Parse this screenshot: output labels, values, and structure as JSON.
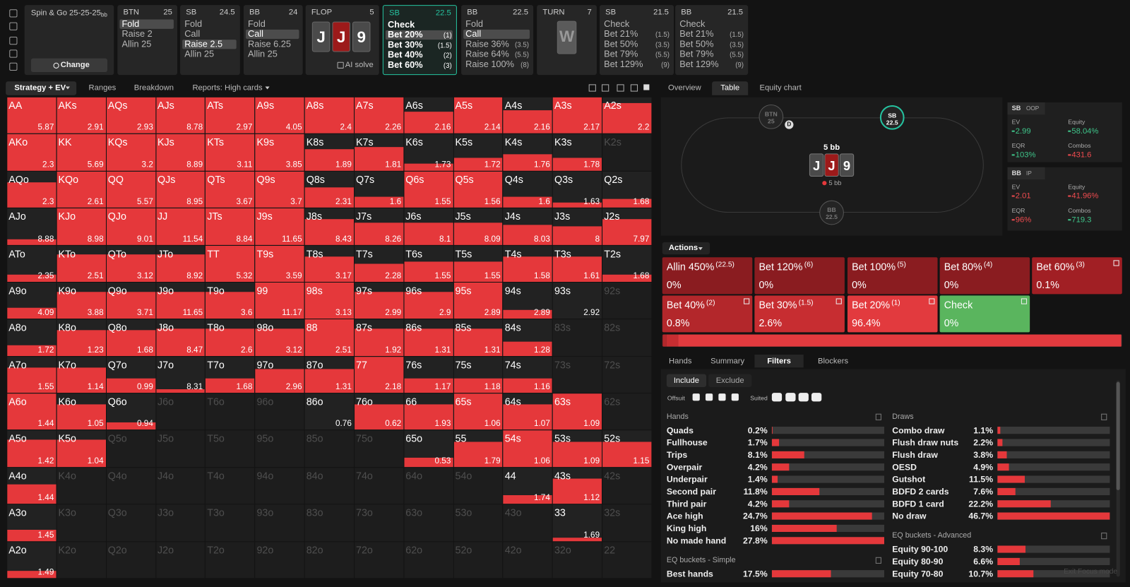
{
  "top_bar": {
    "game": {
      "title": "Spin & Go",
      "stacks": "25-25-25",
      "unit": "bb",
      "button": "Change"
    },
    "nodes": [
      {
        "position": "BTN",
        "stack": 25,
        "actions": [
          {
            "label": "Fold"
          },
          {
            "label": "Raise 2"
          },
          {
            "label": "Allin 25"
          }
        ],
        "selected": 0
      },
      {
        "position": "SB",
        "stack": 24.5,
        "actions": [
          {
            "label": "Fold"
          },
          {
            "label": "Call"
          },
          {
            "label": "Raise 2.5"
          },
          {
            "label": "Allin 25"
          }
        ],
        "selected": 2
      },
      {
        "position": "BB",
        "stack": 24,
        "actions": [
          {
            "label": "Fold"
          },
          {
            "label": "Call"
          },
          {
            "label": "Raise 6.25"
          },
          {
            "label": "Allin 25"
          }
        ],
        "selected": 1
      },
      {
        "position": "FLOP",
        "stack": 5,
        "cards": [
          "J",
          "J",
          "9"
        ],
        "card_colors": [
          "#4a4a4a",
          "#9c1a1a",
          "#4a4a4a"
        ],
        "button": "AI solve"
      },
      {
        "position": "SB",
        "stack": 22.5,
        "active": true,
        "actions": [
          {
            "label": "Check"
          },
          {
            "label": "Bet 20%",
            "size": "(1)"
          },
          {
            "label": "Bet 30%",
            "size": "(1.5)"
          },
          {
            "label": "Bet 40%",
            "size": "(2)"
          },
          {
            "label": "Bet 60%",
            "size": "(3)"
          }
        ],
        "selected": 1
      },
      {
        "position": "BB",
        "stack": 22.5,
        "actions": [
          {
            "label": "Fold"
          },
          {
            "label": "Call"
          },
          {
            "label": "Raise 36%",
            "size": "(3.5)"
          },
          {
            "label": "Raise 64%",
            "size": "(5.5)"
          },
          {
            "label": "Raise 100%",
            "size": "(8)"
          }
        ],
        "selected": 1
      },
      {
        "position": "TURN",
        "stack": 7,
        "cards": [
          "W"
        ],
        "card_colors": [
          "#5a5a5a"
        ]
      },
      {
        "position": "SB",
        "stack": 21.5,
        "actions": [
          {
            "label": "Check"
          },
          {
            "label": "Bet 21%",
            "size": "(1.5)"
          },
          {
            "label": "Bet 50%",
            "size": "(3.5)"
          },
          {
            "label": "Bet 79%",
            "size": "(5.5)"
          },
          {
            "label": "Bet 129%",
            "size": "(9)"
          }
        ]
      },
      {
        "position": "BB",
        "stack": 21.5,
        "actions": [
          {
            "label": "Check"
          },
          {
            "label": "Bet 21%",
            "size": "(1.5)"
          },
          {
            "label": "Bet 50%",
            "size": "(3.5)"
          },
          {
            "label": "Bet 79%",
            "size": "(5.5)"
          },
          {
            "label": "Bet 129%",
            "size": "(9)"
          }
        ]
      }
    ]
  },
  "strategy_tabs": [
    "Strategy + EV",
    "Ranges",
    "Breakdown",
    "Reports: High cards"
  ],
  "view_tabs": [
    "Overview",
    "Table",
    "Equity chart"
  ],
  "active_view": 1,
  "matrix": {
    "rows": [
      [
        [
          "AA",
          5.87,
          100
        ],
        [
          "AKs",
          2.91,
          100
        ],
        [
          "AQs",
          2.93,
          100
        ],
        [
          "AJs",
          8.78,
          100
        ],
        [
          "ATs",
          2.97,
          100
        ],
        [
          "A9s",
          4.05,
          100
        ],
        [
          "A8s",
          2.4,
          100
        ],
        [
          "A7s",
          2.26,
          100
        ],
        [
          "A6s",
          2.16,
          60
        ],
        [
          "A5s",
          2.14,
          100
        ],
        [
          "A4s",
          2.16,
          65
        ],
        [
          "A3s",
          2.17,
          100
        ],
        [
          "A2s",
          2.2,
          85
        ]
      ],
      [
        [
          "AKo",
          2.3,
          100
        ],
        [
          "KK",
          5.69,
          100
        ],
        [
          "KQs",
          3.2,
          100
        ],
        [
          "KJs",
          8.89,
          100
        ],
        [
          "KTs",
          3.11,
          100
        ],
        [
          "K9s",
          3.85,
          100
        ],
        [
          "K8s",
          1.89,
          60
        ],
        [
          "K7s",
          1.81,
          65
        ],
        [
          "K6s",
          1.73,
          20
        ],
        [
          "K5s",
          1.72,
          35
        ],
        [
          "K4s",
          1.76,
          45
        ],
        [
          "K3s",
          1.78,
          35
        ],
        [
          "K2s"
        ]
      ],
      [
        [
          "AQo",
          2.3,
          70
        ],
        [
          "KQo",
          2.61,
          100
        ],
        [
          "QQ",
          5.57,
          100
        ],
        [
          "QJs",
          8.95,
          100
        ],
        [
          "QTs",
          3.67,
          100
        ],
        [
          "Q9s",
          3.7,
          100
        ],
        [
          "Q8s",
          2.31,
          55
        ],
        [
          "Q7s",
          1.6,
          30
        ],
        [
          "Q6s",
          1.55,
          100
        ],
        [
          "Q5s",
          1.56,
          100
        ],
        [
          "Q4s",
          1.6,
          30
        ],
        [
          "Q3s",
          1.63,
          15
        ],
        [
          "Q2s",
          1.68,
          25
        ]
      ],
      [
        [
          "AJo",
          8.88,
          15
        ],
        [
          "KJo",
          8.98,
          100
        ],
        [
          "QJo",
          9.01,
          100
        ],
        [
          "JJ",
          11.54,
          100
        ],
        [
          "JTs",
          8.84,
          100
        ],
        [
          "J9s",
          11.65,
          100
        ],
        [
          "J8s",
          8.43,
          70
        ],
        [
          "J7s",
          8.26,
          60
        ],
        [
          "J6s",
          8.1,
          60
        ],
        [
          "J5s",
          8.09,
          60
        ],
        [
          "J4s",
          8.03,
          55
        ],
        [
          "J3s",
          8,
          50
        ],
        [
          "J2s",
          7.97,
          70
        ]
      ],
      [
        [
          "ATo",
          2.35,
          20
        ],
        [
          "KTo",
          2.51,
          75
        ],
        [
          "QTo",
          3.12,
          75
        ],
        [
          "JTo",
          8.92,
          75
        ],
        [
          "TT",
          5.32,
          100
        ],
        [
          "T9s",
          3.59,
          100
        ],
        [
          "T8s",
          3.17,
          70
        ],
        [
          "T7s",
          2.28,
          50
        ],
        [
          "T6s",
          1.55,
          55
        ],
        [
          "T5s",
          1.55,
          55
        ],
        [
          "T4s",
          1.58,
          70
        ],
        [
          "T3s",
          1.61,
          70
        ],
        [
          "T2s",
          1.68,
          20
        ]
      ],
      [
        [
          "A9o",
          4.09,
          30
        ],
        [
          "K9o",
          3.88,
          75
        ],
        [
          "Q9o",
          3.71,
          75
        ],
        [
          "J9o",
          11.65,
          75
        ],
        [
          "T9o",
          3.6,
          75
        ],
        [
          "99",
          11.17,
          100
        ],
        [
          "98s",
          3.13,
          100
        ],
        [
          "97s",
          2.99,
          75
        ],
        [
          "96s",
          2.9,
          75
        ],
        [
          "95s",
          2.89,
          100
        ],
        [
          "94s",
          2.89,
          25
        ],
        [
          "93s",
          2.92,
          0
        ],
        [
          "92s"
        ]
      ],
      [
        [
          "A8o",
          1.72,
          30
        ],
        [
          "K8o",
          1.23,
          70
        ],
        [
          "Q8o",
          1.68,
          70
        ],
        [
          "J8o",
          8.47,
          75
        ],
        [
          "T8o",
          2.6,
          75
        ],
        [
          "98o",
          3.12,
          75
        ],
        [
          "88",
          2.51,
          100
        ],
        [
          "87s",
          1.92,
          75
        ],
        [
          "86s",
          1.31,
          75
        ],
        [
          "85s",
          1.31,
          75
        ],
        [
          "84s",
          1.28,
          40
        ],
        [
          "83s"
        ],
        [
          "82s"
        ]
      ],
      [
        [
          "A7o",
          1.55,
          70
        ],
        [
          "K7o",
          1.14,
          70
        ],
        [
          "Q7o",
          0.99,
          40
        ],
        [
          "J7o",
          8.31,
          10
        ],
        [
          "T7o",
          1.68,
          40
        ],
        [
          "97o",
          2.96,
          65
        ],
        [
          "87o",
          1.31,
          65
        ],
        [
          "77",
          2.18,
          100
        ],
        [
          "76s",
          1.17,
          40
        ],
        [
          "75s",
          1.18,
          40
        ],
        [
          "74s",
          1.16,
          40
        ],
        [
          "73s"
        ],
        [
          "72s"
        ]
      ],
      [
        [
          "A6o",
          1.44,
          100
        ],
        [
          "K6o",
          1.05,
          70
        ],
        [
          "Q6o",
          0.94,
          20
        ],
        [
          "J6o"
        ],
        [
          "T6o"
        ],
        [
          "96o"
        ],
        [
          "86o",
          0.76,
          0
        ],
        [
          "76o",
          0.62,
          70
        ],
        [
          "66",
          1.93,
          70
        ],
        [
          "65s",
          1.06,
          100
        ],
        [
          "64s",
          1.07,
          70
        ],
        [
          "63s",
          1.09,
          100
        ],
        [
          "62s"
        ]
      ],
      [
        [
          "A5o",
          1.42,
          75
        ],
        [
          "K5o",
          1.04,
          75
        ],
        [
          "Q5o"
        ],
        [
          "J5o"
        ],
        [
          "T5o"
        ],
        [
          "95o"
        ],
        [
          "85o"
        ],
        [
          "75o"
        ],
        [
          "65o",
          0.53,
          25
        ],
        [
          "55",
          1.79,
          70
        ],
        [
          "54s",
          1.06,
          100
        ],
        [
          "53s",
          1.09,
          70
        ],
        [
          "52s",
          1.15,
          70
        ]
      ],
      [
        [
          "A4o",
          1.44,
          55
        ],
        [
          "K4o"
        ],
        [
          "Q4o"
        ],
        [
          "J4o"
        ],
        [
          "T4o"
        ],
        [
          "94o"
        ],
        [
          "84o"
        ],
        [
          "74o"
        ],
        [
          "64o"
        ],
        [
          "54o"
        ],
        [
          "44",
          1.74,
          25
        ],
        [
          "43s",
          1.12,
          70
        ],
        [
          "42s"
        ]
      ],
      [
        [
          "A3o",
          1.45,
          30
        ],
        [
          "K3o"
        ],
        [
          "Q3o"
        ],
        [
          "J3o"
        ],
        [
          "T3o"
        ],
        [
          "93o"
        ],
        [
          "83o"
        ],
        [
          "73o"
        ],
        [
          "63o"
        ],
        [
          "53o"
        ],
        [
          "43o"
        ],
        [
          "33",
          1.69,
          10
        ],
        [
          "32s"
        ]
      ],
      [
        [
          "A2o",
          1.49,
          20
        ],
        [
          "K2o"
        ],
        [
          "Q2o"
        ],
        [
          "J2o"
        ],
        [
          "T2o"
        ],
        [
          "92o"
        ],
        [
          "82o"
        ],
        [
          "72o"
        ],
        [
          "62o"
        ],
        [
          "52o"
        ],
        [
          "42o"
        ],
        [
          "32o"
        ],
        [
          "22"
        ]
      ]
    ]
  },
  "table_view": {
    "players": [
      {
        "name": "BTN",
        "stack": 25
      },
      {
        "name": "SB",
        "stack": 22.5,
        "active": true
      },
      {
        "name": "BB",
        "stack": 22.5
      }
    ],
    "dealer": "D",
    "pot": "5 bb",
    "cards": [
      "J",
      "J",
      "9"
    ],
    "card_colors": [
      "#4a4a4a",
      "#9c1a1a",
      "#4a4a4a"
    ],
    "bet": "5 bb",
    "stats": [
      {
        "player": "SB",
        "tag": "OOP",
        "fields": [
          {
            "label": "EV",
            "value": "2.99",
            "color": "#3fc58a"
          },
          {
            "label": "Equity",
            "value": "58.04%",
            "color": "#3fc58a"
          },
          {
            "label": "EQR",
            "value": "103%",
            "color": "#3fc58a"
          },
          {
            "label": "Combos",
            "value": "431.6",
            "color": "#ef4b4f"
          }
        ]
      },
      {
        "player": "BB",
        "tag": "IP",
        "fields": [
          {
            "label": "EV",
            "value": "2.01",
            "color": "#ef4b4f"
          },
          {
            "label": "Equity",
            "value": "41.96%",
            "color": "#ef4b4f"
          },
          {
            "label": "EQR",
            "value": "96%",
            "color": "#ef4b4f"
          },
          {
            "label": "Combos",
            "value": "719.3",
            "color": "#3fc58a"
          }
        ]
      }
    ]
  },
  "actions_panel": {
    "title": "Actions",
    "actions": [
      {
        "label": "Allin 450%",
        "size": "(22.5)",
        "value": 0,
        "value_label": "0%",
        "color": "#8a1c20"
      },
      {
        "label": "Bet 120%",
        "size": "(6)",
        "value": 0,
        "value_label": "0%",
        "color": "#8a1c20"
      },
      {
        "label": "Bet 100%",
        "size": "(5)",
        "value": 0,
        "value_label": "0%",
        "color": "#8a1c20"
      },
      {
        "label": "Bet 80%",
        "size": "(4)",
        "value": 0,
        "value_label": "0%",
        "color": "#8a1c20"
      },
      {
        "label": "Bet 60%",
        "size": "(3)",
        "value": 0.1,
        "value_label": "0.1%",
        "color": "#a11f24"
      },
      {
        "label": "Bet 40%",
        "size": "(2)",
        "value": 0.8,
        "value_label": "0.8%",
        "color": "#b3272b"
      },
      {
        "label": "Bet 30%",
        "size": "(1.5)",
        "value": 2.6,
        "value_label": "2.6%",
        "color": "#c72d31"
      },
      {
        "label": "Bet 20%",
        "size": "(1)",
        "value": 96.4,
        "value_label": "96.4%",
        "color": "#e23a3e"
      },
      {
        "label": "Check",
        "value": 0,
        "value_label": "0%",
        "color": "#5ab55e"
      }
    ]
  },
  "filters": {
    "tabs": [
      "Hands",
      "Summary",
      "Filters",
      "Blockers"
    ],
    "active_tab": 2,
    "include": "Include",
    "exclude": "Exclude",
    "offsuit": "Offsuit",
    "suited": "Suited",
    "lists": [
      {
        "title": "Hands",
        "names": [
          "Quads",
          "Fullhouse",
          "Trips",
          "Overpair",
          "Underpair",
          "Second pair",
          "Third pair",
          "Ace high",
          "King high",
          "No made hand"
        ],
        "values": [
          0.2,
          1.7,
          8.1,
          4.2,
          1.4,
          11.8,
          4.2,
          24.7,
          16,
          27.8
        ],
        "value_labels": [
          "0.2%",
          "1.7%",
          "8.1%",
          "4.2%",
          "1.4%",
          "11.8%",
          "4.2%",
          "24.7%",
          "16%",
          "27.8%"
        ]
      },
      {
        "title": "Draws",
        "names": [
          "Combo draw",
          "Flush draw nuts",
          "Flush draw",
          "OESD",
          "Gutshot",
          "BDFD 2 cards",
          "BDFD 1 card",
          "No draw"
        ],
        "values": [
          1.1,
          2.2,
          3.8,
          4.9,
          11.5,
          7.6,
          22.2,
          46.7
        ],
        "value_labels": [
          "1.1%",
          "2.2%",
          "3.8%",
          "4.9%",
          "11.5%",
          "7.6%",
          "22.2%",
          "46.7%"
        ]
      },
      {
        "title": "EQ buckets - Simple",
        "names": [
          "Best hands"
        ],
        "values": [
          17.5
        ],
        "value_labels": [
          "17.5%"
        ]
      },
      {
        "title": "EQ buckets - Advanced",
        "names": [
          "Equity 90-100",
          "Equity 80-90",
          "Equity 70-80"
        ],
        "values": [
          8.3,
          6.6,
          10.7
        ],
        "value_labels": [
          "8.3%",
          "6.6%",
          "10.7%"
        ]
      }
    ]
  },
  "footer": "Exit Focus mode"
}
